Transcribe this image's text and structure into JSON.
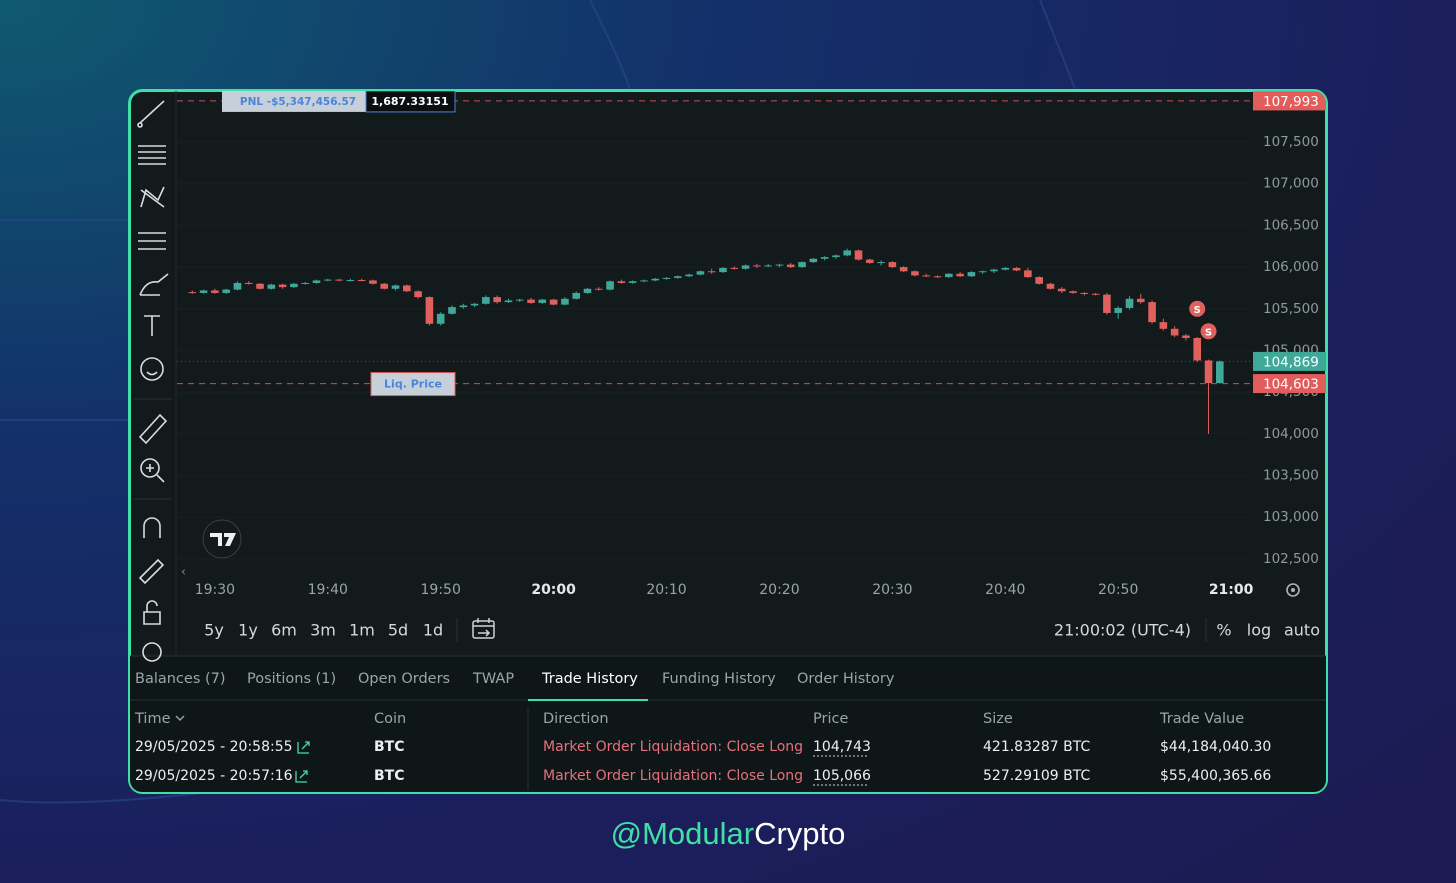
{
  "chart": {
    "type": "candlestick",
    "start": "19:28",
    "xlim": [
      "19:27",
      "21:02"
    ],
    "ylim": [
      102300,
      108100
    ],
    "yticks": [
      {
        "value": 102500,
        "label": "102,500"
      },
      {
        "value": 103000,
        "label": "103,000"
      },
      {
        "value": 103500,
        "label": "103,500"
      },
      {
        "value": 104000,
        "label": "104,000"
      },
      {
        "value": 104500,
        "label": "104,500"
      },
      {
        "value": 105000,
        "label": "105,000"
      },
      {
        "value": 105500,
        "label": "105,500"
      },
      {
        "value": 106000,
        "label": "106,000"
      },
      {
        "value": 106500,
        "label": "106,500"
      },
      {
        "value": 107000,
        "label": "107,000"
      },
      {
        "value": 107500,
        "label": "107,500"
      }
    ],
    "xticks": [
      "19:30",
      "19:40",
      "19:50",
      "20:00",
      "20:10",
      "20:20",
      "20:30",
      "20:40",
      "20:50",
      "21:00"
    ],
    "up_color": "#3fa899",
    "down_color": "#e0605e",
    "candles": [
      [
        105700,
        105720,
        105680,
        105690
      ],
      [
        105690,
        105730,
        105680,
        105720
      ],
      [
        105720,
        105740,
        105680,
        105690
      ],
      [
        105690,
        105740,
        105680,
        105730
      ],
      [
        105730,
        105830,
        105720,
        105810
      ],
      [
        105810,
        105830,
        105790,
        105800
      ],
      [
        105800,
        105810,
        105730,
        105740
      ],
      [
        105740,
        105800,
        105730,
        105790
      ],
      [
        105790,
        105800,
        105740,
        105760
      ],
      [
        105760,
        105810,
        105750,
        105800
      ],
      [
        105800,
        105820,
        105790,
        105810
      ],
      [
        105810,
        105850,
        105800,
        105840
      ],
      [
        105840,
        105860,
        105830,
        105850
      ],
      [
        105850,
        105860,
        105830,
        105840
      ],
      [
        105840,
        105860,
        105830,
        105845
      ],
      [
        105845,
        105860,
        105830,
        105840
      ],
      [
        105840,
        105850,
        105790,
        105800
      ],
      [
        105800,
        105810,
        105730,
        105740
      ],
      [
        105740,
        105790,
        105720,
        105780
      ],
      [
        105780,
        105790,
        105700,
        105710
      ],
      [
        105710,
        105720,
        105620,
        105640
      ],
      [
        105640,
        105650,
        105300,
        105320
      ],
      [
        105320,
        105460,
        105300,
        105440
      ],
      [
        105440,
        105540,
        105430,
        105520
      ],
      [
        105520,
        105560,
        105500,
        105540
      ],
      [
        105540,
        105570,
        105520,
        105560
      ],
      [
        105560,
        105660,
        105550,
        105640
      ],
      [
        105640,
        105660,
        105560,
        105580
      ],
      [
        105580,
        105620,
        105570,
        105600
      ],
      [
        105600,
        105620,
        105580,
        105610
      ],
      [
        105610,
        105630,
        105560,
        105570
      ],
      [
        105570,
        105620,
        105560,
        105610
      ],
      [
        105610,
        105620,
        105540,
        105550
      ],
      [
        105550,
        105640,
        105540,
        105620
      ],
      [
        105620,
        105710,
        105610,
        105690
      ],
      [
        105690,
        105750,
        105680,
        105740
      ],
      [
        105740,
        105760,
        105720,
        105730
      ],
      [
        105730,
        105840,
        105720,
        105830
      ],
      [
        105830,
        105850,
        105800,
        105810
      ],
      [
        105810,
        105840,
        105800,
        105830
      ],
      [
        105830,
        105850,
        105820,
        105840
      ],
      [
        105840,
        105870,
        105830,
        105860
      ],
      [
        105860,
        105880,
        105850,
        105870
      ],
      [
        105870,
        105900,
        105860,
        105890
      ],
      [
        105890,
        105920,
        105880,
        105910
      ],
      [
        105910,
        105960,
        105900,
        105950
      ],
      [
        105950,
        105980,
        105920,
        105940
      ],
      [
        105940,
        106000,
        105930,
        105990
      ],
      [
        105990,
        106010,
        105970,
        105980
      ],
      [
        105980,
        106030,
        105970,
        106020
      ],
      [
        106020,
        106040,
        105990,
        106010
      ],
      [
        106010,
        106040,
        106000,
        106020
      ],
      [
        106020,
        106040,
        106000,
        106030
      ],
      [
        106030,
        106050,
        105990,
        106000
      ],
      [
        106000,
        106070,
        105990,
        106060
      ],
      [
        106060,
        106110,
        106050,
        106100
      ],
      [
        106100,
        106130,
        106080,
        106120
      ],
      [
        106120,
        106150,
        106100,
        106140
      ],
      [
        106140,
        106220,
        106130,
        106200
      ],
      [
        106200,
        106210,
        106080,
        106090
      ],
      [
        106090,
        106100,
        106040,
        106050
      ],
      [
        106050,
        106080,
        106020,
        106060
      ],
      [
        106060,
        106070,
        105990,
        106000
      ],
      [
        106000,
        106010,
        105940,
        105950
      ],
      [
        105950,
        105960,
        105890,
        105900
      ],
      [
        105900,
        105920,
        105880,
        105890
      ],
      [
        105890,
        105900,
        105870,
        105880
      ],
      [
        105880,
        105930,
        105870,
        105920
      ],
      [
        105920,
        105940,
        105880,
        105890
      ],
      [
        105890,
        105950,
        105880,
        105940
      ],
      [
        105940,
        105960,
        105920,
        105950
      ],
      [
        105950,
        105980,
        105930,
        105970
      ],
      [
        105970,
        106000,
        105960,
        105990
      ],
      [
        105990,
        106000,
        105950,
        105960
      ],
      [
        105960,
        105990,
        105870,
        105880
      ],
      [
        105880,
        105890,
        105790,
        105800
      ],
      [
        105800,
        105810,
        105730,
        105740
      ],
      [
        105740,
        105760,
        105690,
        105710
      ],
      [
        105710,
        105720,
        105680,
        105690
      ],
      [
        105690,
        105700,
        105660,
        105680
      ],
      [
        105680,
        105690,
        105660,
        105670
      ],
      [
        105670,
        105690,
        105430,
        105450
      ],
      [
        105450,
        105530,
        105380,
        105510
      ],
      [
        105510,
        105650,
        105490,
        105620
      ],
      [
        105620,
        105680,
        105560,
        105580
      ],
      [
        105580,
        105600,
        105320,
        105340
      ],
      [
        105340,
        105380,
        105240,
        105260
      ],
      [
        105260,
        105290,
        105160,
        105180
      ],
      [
        105180,
        105200,
        105120,
        105150
      ],
      [
        105150,
        105160,
        104860,
        104880
      ],
      [
        104880,
        104890,
        104000,
        104610
      ],
      [
        104610,
        104880,
        104600,
        104869
      ]
    ],
    "price_lines": [
      {
        "value": 107993,
        "label": "107,993",
        "color": "#e25c5c",
        "style": "dashed"
      },
      {
        "value": 104869,
        "label": "104,869",
        "color": "#3fa899",
        "style": "dotted"
      },
      {
        "value": 104603,
        "label": "104,603",
        "color": "#e25c5c",
        "style": "dashed"
      }
    ],
    "pnl_label": "PNL -$5,347,456.57",
    "pnl_size": "1,687.33151",
    "liq_label": "Liq. Price",
    "markers": [
      {
        "time": "20:57",
        "price": 105500,
        "label": "S"
      },
      {
        "time": "20:58",
        "price": 105230,
        "label": "S"
      }
    ]
  },
  "timeframes": [
    "5y",
    "1y",
    "6m",
    "3m",
    "1m",
    "5d",
    "1d"
  ],
  "clock": "21:00:02 (UTC-4)",
  "scale_options": [
    "%",
    "log",
    "auto"
  ],
  "tabs": [
    "Balances (7)",
    "Positions (1)",
    "Open Orders",
    "TWAP",
    "Trade History",
    "Funding History",
    "Order History"
  ],
  "active_tab": 4,
  "table": {
    "headers": [
      "Time",
      "Coin",
      "Direction",
      "Price",
      "Size",
      "Trade Value"
    ],
    "rows": [
      [
        "29/05/2025 - 20:58:55",
        "BTC",
        "Market Order Liquidation: Close Long",
        "104,743",
        "421.83287 BTC",
        "$44,184,040.30"
      ],
      [
        "29/05/2025 - 20:57:16",
        "BTC",
        "Market Order Liquidation: Close Long",
        "105,066",
        "527.29109 BTC",
        "$55,400,365.66"
      ]
    ]
  },
  "watermark": {
    "prefix": "@Modular",
    "suffix": "Crypto"
  }
}
